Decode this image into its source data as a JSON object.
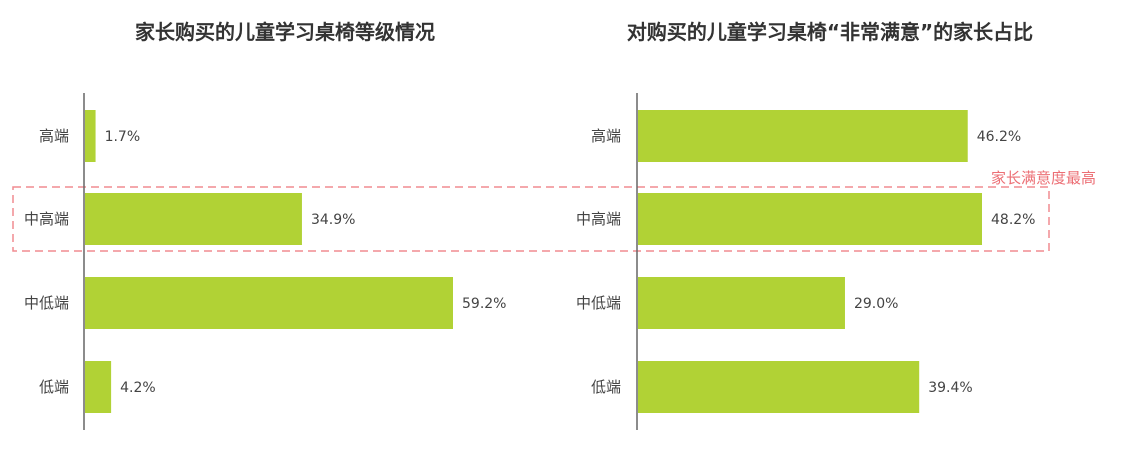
{
  "chart_data": [
    {
      "type": "bar",
      "orientation": "horizontal",
      "title": "家长购买的儿童学习桌椅等级情况",
      "categories": [
        "高端",
        "中高端",
        "中低端",
        "低端"
      ],
      "values": [
        1.7,
        34.9,
        59.2,
        4.2
      ],
      "value_labels": [
        "1.7%",
        "34.9%",
        "59.2%",
        "4.2%"
      ],
      "unit": "%",
      "xlim": [
        0,
        62
      ],
      "grid": false,
      "bar_color": "#b1d235"
    },
    {
      "type": "bar",
      "orientation": "horizontal",
      "title": "对购买的儿童学习桌椅“非常满意”的家长占比",
      "categories": [
        "高端",
        "中高端",
        "中低端",
        "低端"
      ],
      "values": [
        46.2,
        48.2,
        29.0,
        39.4
      ],
      "value_labels": [
        "46.2%",
        "48.2%",
        "29.0%",
        "39.4%"
      ],
      "unit": "%",
      "xlim": [
        0,
        60
      ],
      "grid": false,
      "bar_color": "#b1d235"
    }
  ],
  "highlight": {
    "category": "中高端",
    "note": "家长满意度最高",
    "border_color": "#ec6f75"
  }
}
